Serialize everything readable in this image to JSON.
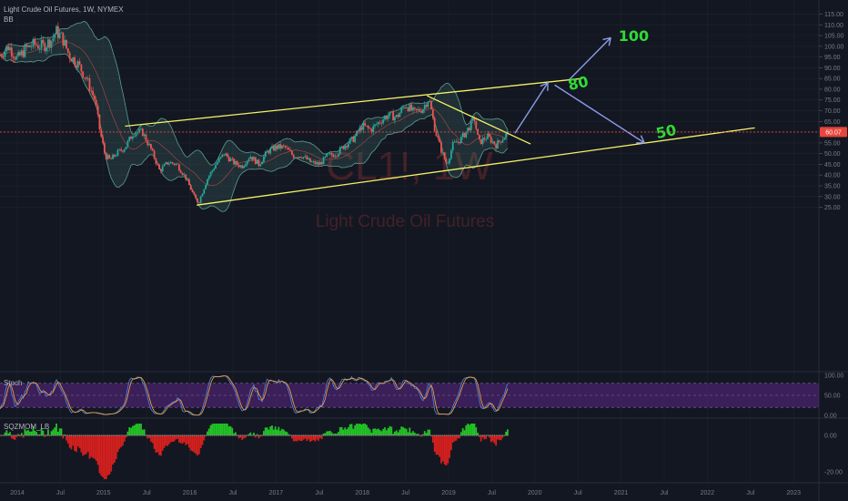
{
  "header": {
    "title": "Light Crude Oil Futures, 1W, NYMEX",
    "indicator": "BB"
  },
  "watermark": {
    "symbol": "CL1!, 1W",
    "name": "Light Crude Oil Futures"
  },
  "price_tag": "60.07",
  "panes": {
    "stoch_label": "Stoch",
    "sqz_label": "SQZMOM_LB"
  },
  "annotations": {
    "target_high": "100",
    "target_mid": "80",
    "target_low": "50"
  },
  "colors": {
    "background": "#131722",
    "up_candle": "#26a69a",
    "down_candle": "#ef5350",
    "channel": "#f4f266",
    "arrow": "#8c9ce8",
    "handwriting": "#2fdc34",
    "bollinger": "#5a9e8e",
    "stoch_band": "#6a2b9c"
  },
  "chart_data": [
    {
      "type": "candlestick",
      "title": "Light Crude Oil Futures, 1W, NYMEX",
      "y_ticks": [
        "115.00",
        "110.00",
        "105.00",
        "100.00",
        "95.00",
        "90.00",
        "85.00",
        "80.00",
        "75.00",
        "70.00",
        "65.00",
        "60.00",
        "55.00",
        "50.00",
        "45.00",
        "40.00",
        "35.00",
        "30.00",
        "25.00"
      ],
      "ylim": [
        23,
        117
      ],
      "x_ticks": [
        "2014",
        "Jul",
        "2015",
        "Jul",
        "2016",
        "Jul",
        "2017",
        "Jul",
        "2018",
        "Jul",
        "2019",
        "Jul",
        "2020",
        "Jul",
        "2021",
        "Jul",
        "2022",
        "Jul",
        "2023"
      ],
      "x_tick_years": [
        2014.0,
        2014.5,
        2015.0,
        2015.5,
        2016.0,
        2016.5,
        2017.0,
        2017.5,
        2018.0,
        2018.5,
        2019.0,
        2019.5,
        2020.0,
        2020.5,
        2021.0,
        2021.5,
        2022.0,
        2022.5,
        2023.0
      ],
      "price_path": [
        [
          2013.8,
          96
        ],
        [
          2013.9,
          100
        ],
        [
          2014.0,
          94
        ],
        [
          2014.1,
          99
        ],
        [
          2014.2,
          101
        ],
        [
          2014.3,
          100
        ],
        [
          2014.4,
          103
        ],
        [
          2014.45,
          107
        ],
        [
          2014.52,
          104
        ],
        [
          2014.6,
          96
        ],
        [
          2014.7,
          92
        ],
        [
          2014.8,
          85
        ],
        [
          2014.9,
          75
        ],
        [
          2014.96,
          60
        ],
        [
          2015.02,
          49
        ],
        [
          2015.08,
          47
        ],
        [
          2015.15,
          50
        ],
        [
          2015.25,
          53
        ],
        [
          2015.35,
          60
        ],
        [
          2015.45,
          60
        ],
        [
          2015.55,
          52
        ],
        [
          2015.65,
          42
        ],
        [
          2015.75,
          46
        ],
        [
          2015.85,
          45
        ],
        [
          2015.95,
          39
        ],
        [
          2016.05,
          30
        ],
        [
          2016.1,
          27
        ],
        [
          2016.2,
          38
        ],
        [
          2016.3,
          45
        ],
        [
          2016.4,
          50
        ],
        [
          2016.5,
          46
        ],
        [
          2016.6,
          44
        ],
        [
          2016.7,
          49
        ],
        [
          2016.8,
          45
        ],
        [
          2016.9,
          51
        ],
        [
          2017.0,
          53
        ],
        [
          2017.1,
          53
        ],
        [
          2017.2,
          49
        ],
        [
          2017.3,
          49
        ],
        [
          2017.4,
          46
        ],
        [
          2017.5,
          45
        ],
        [
          2017.6,
          49
        ],
        [
          2017.7,
          50
        ],
        [
          2017.8,
          54
        ],
        [
          2017.9,
          57
        ],
        [
          2018.0,
          63
        ],
        [
          2018.1,
          61
        ],
        [
          2018.2,
          65
        ],
        [
          2018.3,
          68
        ],
        [
          2018.4,
          67
        ],
        [
          2018.5,
          73
        ],
        [
          2018.6,
          69
        ],
        [
          2018.7,
          71
        ],
        [
          2018.77,
          76
        ],
        [
          2018.85,
          60
        ],
        [
          2018.92,
          51
        ],
        [
          2018.98,
          45
        ],
        [
          2019.05,
          54
        ],
        [
          2019.15,
          57
        ],
        [
          2019.25,
          63
        ],
        [
          2019.3,
          66
        ],
        [
          2019.35,
          55
        ],
        [
          2019.45,
          58
        ],
        [
          2019.55,
          54
        ],
        [
          2019.62,
          57
        ],
        [
          2019.7,
          60
        ]
      ],
      "last_price": 60.07,
      "channel_upper": [
        [
          2015.25,
          62.8
        ],
        [
          2020.55,
          85
        ]
      ],
      "channel_lower": [
        [
          2016.08,
          26
        ],
        [
          2022.55,
          62
        ]
      ],
      "trend_line": [
        [
          2018.75,
          77
        ],
        [
          2019.95,
          54.5
        ]
      ],
      "projection_arrows": [
        [
          [
            2019.77,
            59.5
          ],
          [
            2020.15,
            83
          ]
        ],
        [
          [
            2020.4,
            84.5
          ],
          [
            2020.88,
            104
          ]
        ],
        [
          [
            2020.23,
            82
          ],
          [
            2021.27,
            55
          ]
        ]
      ],
      "annotations": [
        {
          "text": "100",
          "x": 2020.97,
          "y": 102.5
        },
        {
          "text": "80",
          "x": 2020.4,
          "y": 79.5
        },
        {
          "text": "50",
          "x": 2021.42,
          "y": 57
        }
      ]
    },
    {
      "type": "line",
      "title": "Stoch",
      "y_ticks": [
        "100.00",
        "50.00",
        "0.00"
      ],
      "ylim": [
        0,
        100
      ],
      "band": [
        20,
        80
      ]
    },
    {
      "type": "bar",
      "title": "SQZMOM_LB",
      "y_ticks": [
        "0.00",
        "-20.00"
      ],
      "ylim": [
        -25,
        7
      ]
    }
  ]
}
